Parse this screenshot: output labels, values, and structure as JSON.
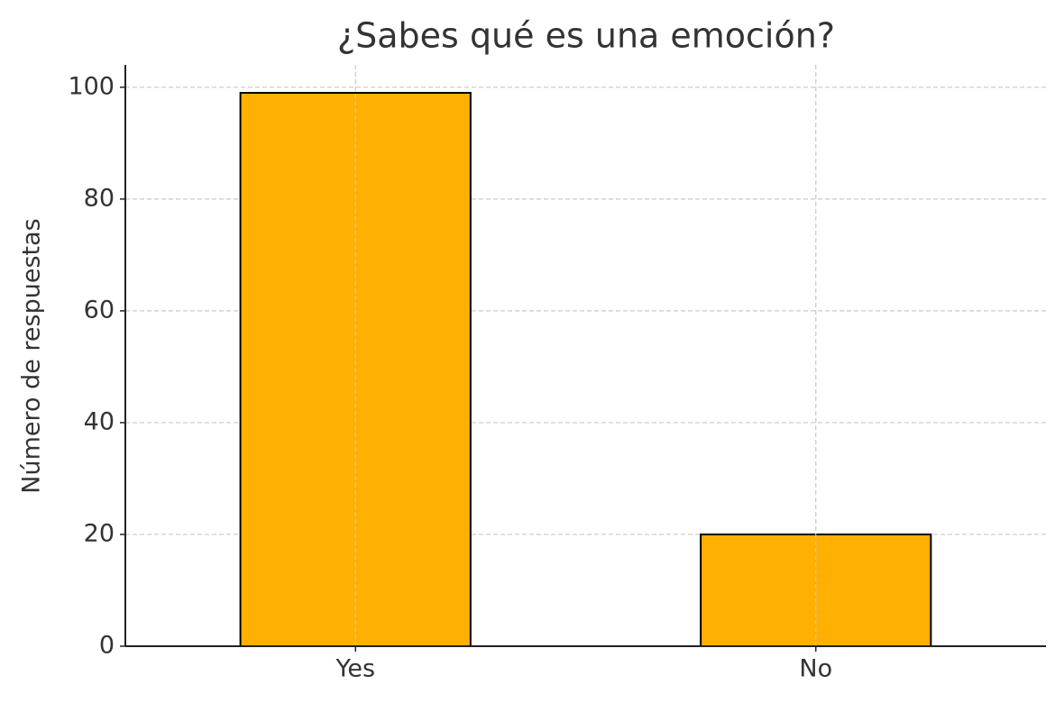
{
  "chart_data": {
    "type": "bar",
    "title": "¿Sabes qué es una emoción?",
    "ylabel": "Número de respuestas",
    "categories": [
      "Yes",
      "No"
    ],
    "values": [
      99,
      20
    ],
    "color": "#ffb000",
    "edgecolor": "#000000",
    "ylim": [
      0,
      104
    ],
    "yticks": [
      0,
      20,
      40,
      60,
      80,
      100
    ],
    "grid": true
  }
}
